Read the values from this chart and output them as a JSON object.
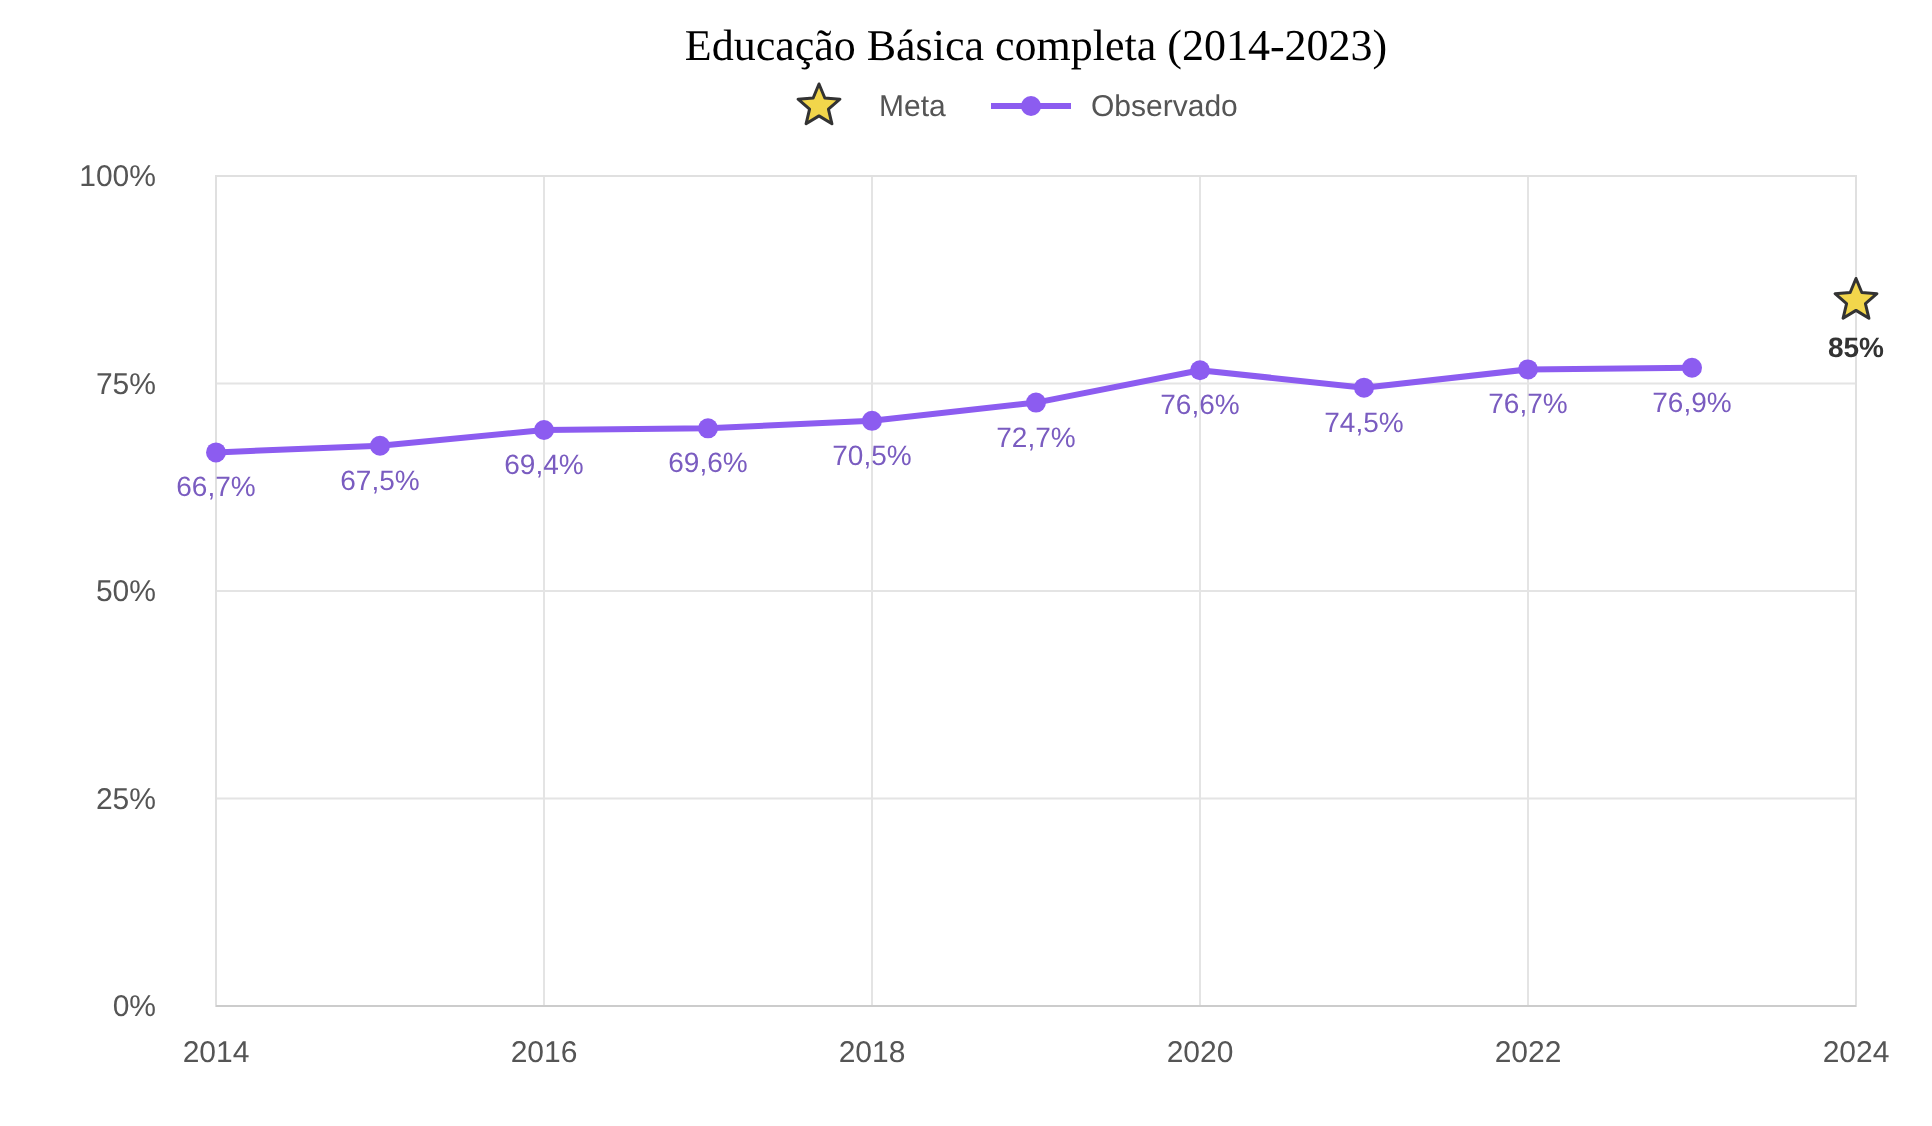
{
  "chart_data": {
    "type": "line",
    "title": "Educação Básica completa (2014-2023)",
    "legend": "top",
    "grid": true,
    "xlim": [
      2014,
      2024
    ],
    "xticks": [
      2014,
      2016,
      2018,
      2020,
      2022,
      2024
    ],
    "ylim": [
      0,
      100
    ],
    "yticks": [
      {
        "value": 0,
        "label": "0%"
      },
      {
        "value": 25,
        "label": "25%"
      },
      {
        "value": 50,
        "label": "50%"
      },
      {
        "value": 75,
        "label": "75%"
      },
      {
        "value": 100,
        "label": "100%"
      }
    ],
    "series": [
      {
        "name": "Meta",
        "type": "scatter",
        "marker": "star",
        "color": "#f2d64b",
        "x": [
          2024
        ],
        "values": [
          85
        ],
        "value_labels": [
          "85%"
        ]
      },
      {
        "name": "Observado",
        "marker": "circle",
        "color": "#8c5cf0",
        "x": [
          2014,
          2015,
          2016,
          2017,
          2018,
          2019,
          2020,
          2021,
          2022,
          2023
        ],
        "values": [
          66.7,
          67.5,
          69.4,
          69.6,
          70.5,
          72.7,
          76.6,
          74.5,
          76.7,
          76.9
        ],
        "value_labels": [
          "66,7%",
          "67,5%",
          "69,4%",
          "69,6%",
          "70,5%",
          "72,7%",
          "76,6%",
          "74,5%",
          "76,7%",
          "76,9%"
        ]
      }
    ]
  }
}
